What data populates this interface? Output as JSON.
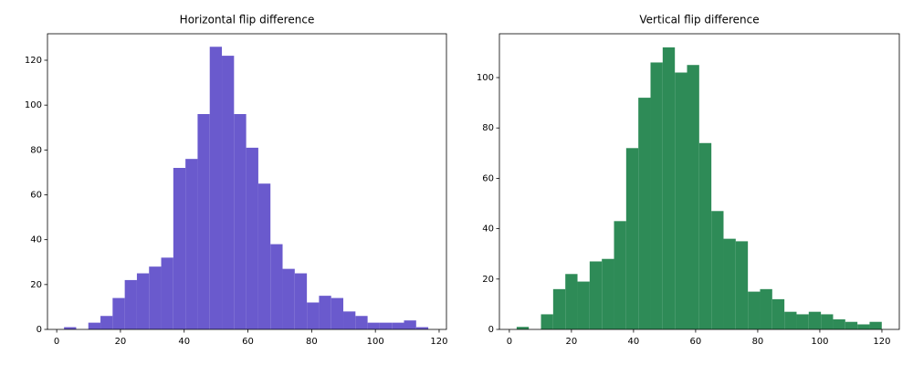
{
  "chart_data": [
    {
      "type": "histogram",
      "title": "Horizontal flip difference",
      "color": "#6a5acd",
      "bins": [
        2.3,
        6.11,
        9.92,
        13.73,
        17.54,
        21.35,
        25.16,
        28.97,
        32.78,
        36.59,
        40.4,
        44.21,
        48.02,
        51.83,
        55.64,
        59.45,
        63.26,
        67.07,
        70.88,
        74.69,
        78.5,
        82.31,
        86.12,
        89.93,
        93.74,
        97.55,
        101.36,
        105.17,
        108.98,
        112.79,
        116.6
      ],
      "counts": [
        1,
        0,
        3,
        6,
        14,
        22,
        25,
        28,
        32,
        72,
        76,
        96,
        126,
        122,
        96,
        81,
        65,
        38,
        27,
        25,
        12,
        15,
        14,
        8,
        6,
        3,
        3,
        3,
        4,
        1
      ],
      "xlim": [
        -2.9,
        122.3
      ],
      "xticks": [
        0,
        20,
        40,
        60,
        80,
        100,
        120
      ],
      "ylim": [
        0,
        131.8
      ],
      "yticks": [
        0,
        20,
        40,
        60,
        80,
        100,
        120
      ]
    },
    {
      "type": "histogram",
      "title": "Vertical flip difference",
      "color": "#2e8b57",
      "bins": [
        2.35,
        6.27,
        10.19,
        14.11,
        18.03,
        21.95,
        25.87,
        29.79,
        33.71,
        37.63,
        41.55,
        45.47,
        49.39,
        53.31,
        57.23,
        61.15,
        65.07,
        68.99,
        72.91,
        76.83,
        80.75,
        84.67,
        88.59,
        92.51,
        96.43,
        100.35,
        104.27,
        108.19,
        112.11,
        116.03,
        119.95
      ],
      "counts": [
        1,
        0,
        6,
        16,
        22,
        19,
        27,
        28,
        43,
        72,
        92,
        106,
        112,
        102,
        105,
        74,
        47,
        36,
        35,
        15,
        16,
        12,
        7,
        6,
        7,
        6,
        4,
        3,
        2,
        3
      ],
      "xlim": [
        -3.2,
        125.6
      ],
      "xticks": [
        0,
        20,
        40,
        60,
        80,
        100,
        120
      ],
      "ylim": [
        0,
        117.4
      ],
      "yticks": [
        0,
        20,
        40,
        60,
        80,
        100
      ]
    }
  ]
}
